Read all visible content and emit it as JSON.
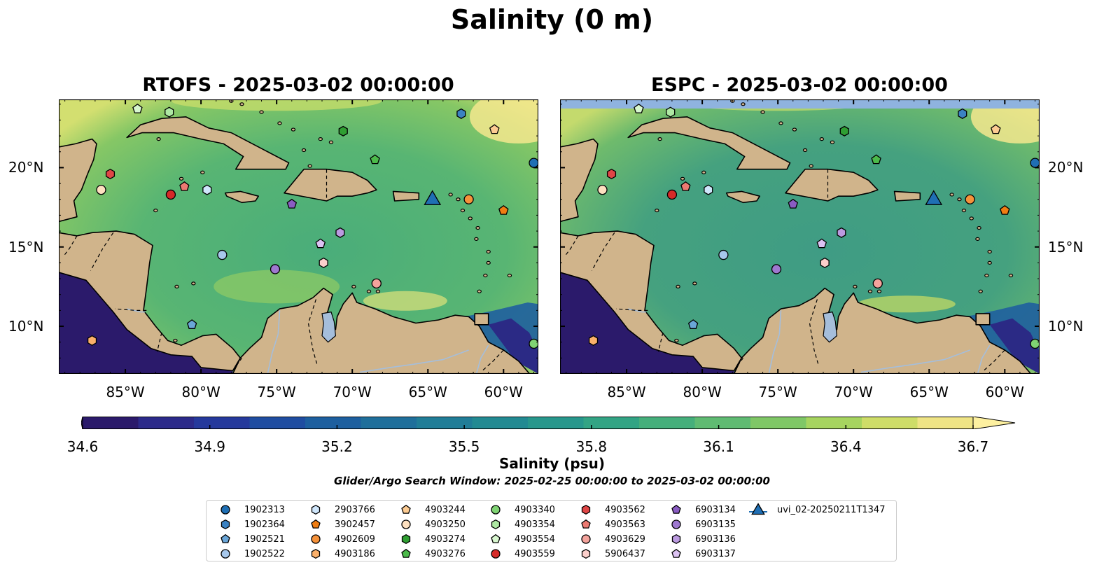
{
  "figure": {
    "title": "Salinity (0 m)",
    "search_window": "Glider/Argo Search Window: 2025-02-25 00:00:00 to 2025-03-02 00:00:00"
  },
  "maps": [
    {
      "title": "RTOFS - 2025-03-02 00:00:00"
    },
    {
      "title": "ESPC - 2025-03-02 00:00:00"
    }
  ],
  "axes": {
    "lon_labels": [
      "85°W",
      "80°W",
      "75°W",
      "70°W",
      "65°W",
      "60°W"
    ],
    "lat_labels": [
      "20°N",
      "15°N",
      "10°N"
    ]
  },
  "colorbar": {
    "label": "Salinity (psu)",
    "ticks": [
      "34.6",
      "34.9",
      "35.2",
      "35.5",
      "35.8",
      "36.1",
      "36.4",
      "36.7"
    ],
    "colors": [
      "#2b1a6b",
      "#2c2a8a",
      "#25399c",
      "#1f4da1",
      "#1d5f9f",
      "#1f6f9b",
      "#207d97",
      "#228a92",
      "#27978c",
      "#32a484",
      "#45af7b",
      "#5fbb72",
      "#7fc766",
      "#a6d45f",
      "#cedd68",
      "#efe485"
    ],
    "under_color": "#2a1862",
    "over_color": "#fdf0a0"
  },
  "colors": {
    "land": "#d0b48b",
    "coast": "#000000",
    "rivers": "#a5bedb",
    "ocean_base": "#3b9a86"
  },
  "legend": {
    "items": [
      {
        "label": "1902313",
        "marker": "circle",
        "color": "#1f6fb4"
      },
      {
        "label": "1902364",
        "marker": "hexagon",
        "color": "#3b82c2"
      },
      {
        "label": "1902521",
        "marker": "pentagon",
        "color": "#6aa6d8"
      },
      {
        "label": "1902522",
        "marker": "circle",
        "color": "#a7c8ec"
      },
      {
        "label": "2903766",
        "marker": "hexagon",
        "color": "#cfe6fb"
      },
      {
        "label": "3902457",
        "marker": "pentagon",
        "color": "#f07d12"
      },
      {
        "label": "4902609",
        "marker": "circle",
        "color": "#f6923a"
      },
      {
        "label": "4903186",
        "marker": "hexagon",
        "color": "#fbb06a"
      },
      {
        "label": "4903244",
        "marker": "pentagon",
        "color": "#fccb92"
      },
      {
        "label": "4903250",
        "marker": "circle",
        "color": "#fde0c0"
      },
      {
        "label": "4903274",
        "marker": "hexagon",
        "color": "#2f9e32"
      },
      {
        "label": "4903276",
        "marker": "pentagon",
        "color": "#4cba4a"
      },
      {
        "label": "4903340",
        "marker": "circle",
        "color": "#7fd373"
      },
      {
        "label": "4903354",
        "marker": "hexagon",
        "color": "#aee8a3"
      },
      {
        "label": "4903554",
        "marker": "pentagon",
        "color": "#d8f7cf"
      },
      {
        "label": "4903559",
        "marker": "circle",
        "color": "#d62a28"
      },
      {
        "label": "4903562",
        "marker": "hexagon",
        "color": "#e04646"
      },
      {
        "label": "4903563",
        "marker": "pentagon",
        "color": "#ec7a72"
      },
      {
        "label": "4903629",
        "marker": "circle",
        "color": "#f4a39c"
      },
      {
        "label": "5906437",
        "marker": "hexagon",
        "color": "#fccfcb"
      },
      {
        "label": "6903134",
        "marker": "pentagon",
        "color": "#8a5cc2"
      },
      {
        "label": "6903135",
        "marker": "circle",
        "color": "#9e78cf"
      },
      {
        "label": "6903136",
        "marker": "hexagon",
        "color": "#bb9ae0"
      },
      {
        "label": "6903137",
        "marker": "pentagon",
        "color": "#dcc2f2"
      },
      {
        "label": "uvi_02-20250211T1347",
        "marker": "triangle",
        "color": "#1f6fb4"
      }
    ]
  },
  "platforms": [
    {
      "id": "1902313",
      "lon": -58.0,
      "lat": 20.3
    },
    {
      "id": "1902364",
      "lon": -62.8,
      "lat": 23.4
    },
    {
      "id": "1902521",
      "lon": -80.6,
      "lat": 10.1
    },
    {
      "id": "1902522",
      "lon": -78.6,
      "lat": 14.5
    },
    {
      "id": "2903766",
      "lon": -79.6,
      "lat": 18.6
    },
    {
      "id": "3902457",
      "lon": -60.0,
      "lat": 17.3
    },
    {
      "id": "4902609",
      "lon": -62.3,
      "lat": 18.0
    },
    {
      "id": "4903186",
      "lon": -87.2,
      "lat": 9.1
    },
    {
      "id": "4903244",
      "lon": -60.6,
      "lat": 22.4
    },
    {
      "id": "4903250",
      "lon": -86.6,
      "lat": 18.6
    },
    {
      "id": "4903274",
      "lon": -70.6,
      "lat": 22.3
    },
    {
      "id": "4903276",
      "lon": -68.5,
      "lat": 20.5
    },
    {
      "id": "4903340",
      "lon": -58.0,
      "lat": 8.9
    },
    {
      "id": "4903354",
      "lon": -82.1,
      "lat": 23.5
    },
    {
      "id": "4903554",
      "lon": -84.2,
      "lat": 23.7
    },
    {
      "id": "4903559",
      "lon": -82.0,
      "lat": 18.3
    },
    {
      "id": "4903562",
      "lon": -86.0,
      "lat": 19.6
    },
    {
      "id": "4903563",
      "lon": -81.1,
      "lat": 18.8
    },
    {
      "id": "4903629",
      "lon": -68.4,
      "lat": 12.7
    },
    {
      "id": "5906437",
      "lon": -71.9,
      "lat": 14.0
    },
    {
      "id": "6903134",
      "lon": -74.0,
      "lat": 17.7
    },
    {
      "id": "6903135",
      "lon": -75.1,
      "lat": 13.6
    },
    {
      "id": "6903136",
      "lon": -70.8,
      "lat": 15.9
    },
    {
      "id": "6903137",
      "lon": -72.1,
      "lat": 15.2
    },
    {
      "id": "uvi_02-20250211T1347",
      "lon": -64.7,
      "lat": 18.1
    }
  ]
}
